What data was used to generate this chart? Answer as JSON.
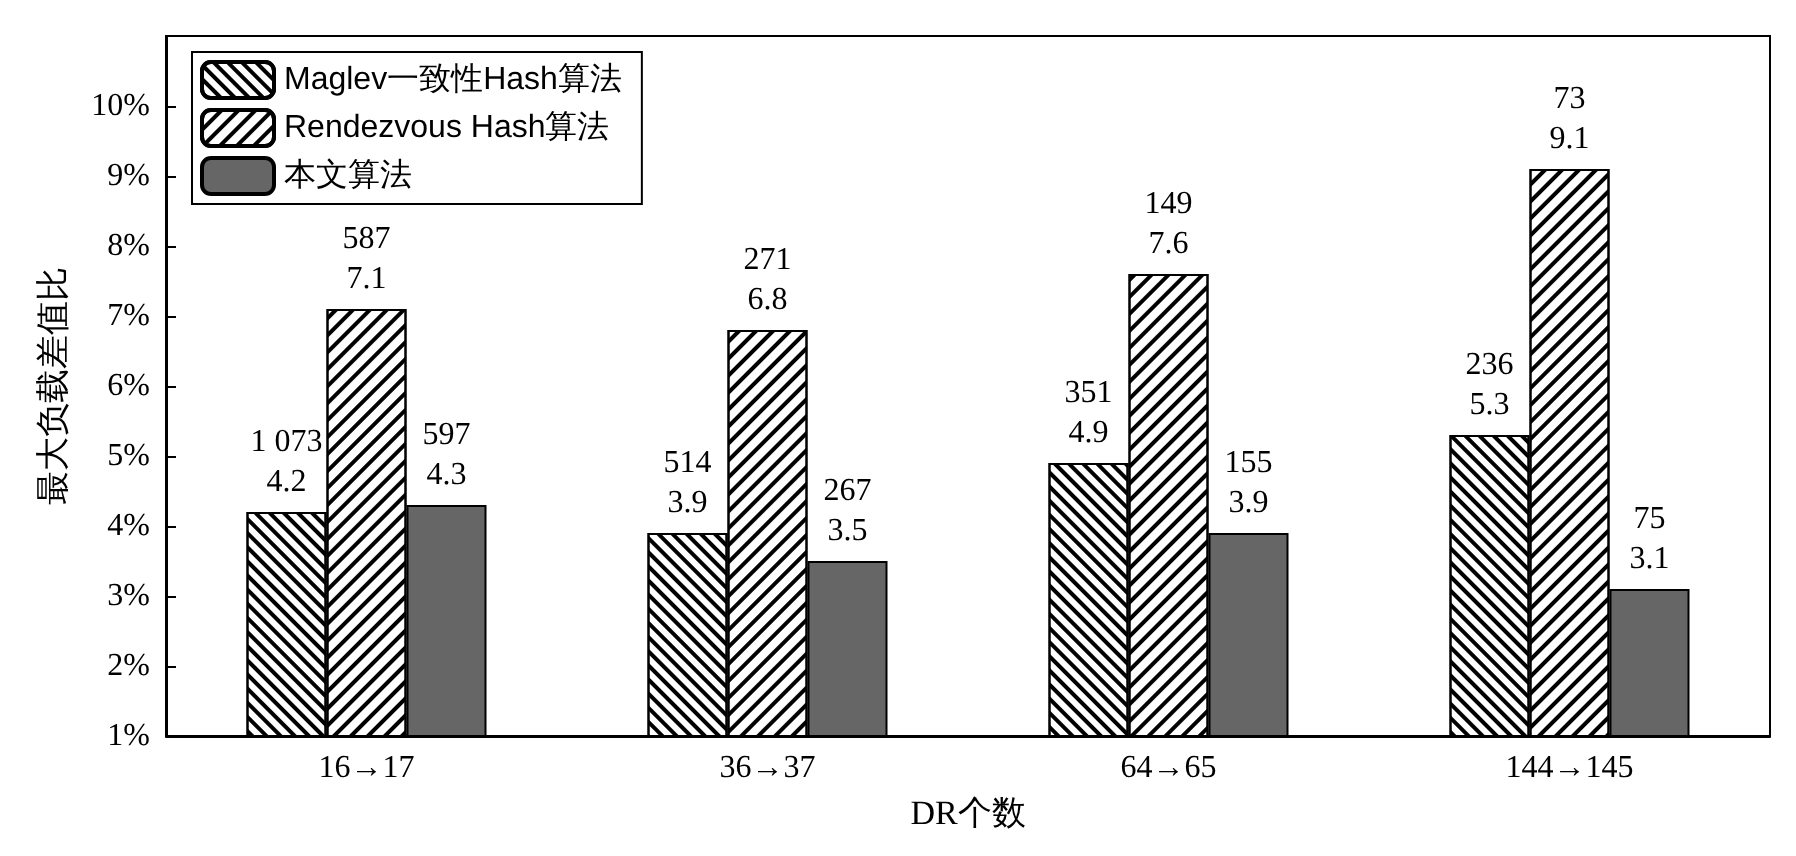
{
  "chart_data": {
    "type": "bar",
    "xlabel": "DR个数",
    "ylabel": "最大负载差值比",
    "categories": [
      "16→17",
      "36→37",
      "64→65",
      "144→145"
    ],
    "series": [
      {
        "name": "Maglev一致性Hash算法",
        "color": "#ffffff",
        "values": [
          4.2,
          3.9,
          4.9,
          5.3
        ],
        "value_labels": [
          "1 073\n4.2",
          "514\n3.9",
          "351\n4.9",
          "236\n5.3"
        ]
      },
      {
        "name": "Rendezvous Hash算法",
        "color": "#ffffff",
        "values": [
          7.1,
          6.8,
          7.6,
          9.1
        ],
        "value_labels": [
          "587\n7.1",
          "271\n6.8",
          "149\n7.6",
          "73\n9.1"
        ]
      },
      {
        "name": "本文算法",
        "color": "#666666",
        "values": [
          4.3,
          3.5,
          3.9,
          3.1
        ],
        "value_labels": [
          "597\n4.3",
          "267\n3.5",
          "155\n3.9",
          "75\n3.1"
        ]
      }
    ],
    "ylim": [
      1,
      11
    ],
    "yticks": [
      {
        "value": 1,
        "label": "1%"
      },
      {
        "value": 2,
        "label": "2%"
      },
      {
        "value": 3,
        "label": "3%"
      },
      {
        "value": 4,
        "label": "4%"
      },
      {
        "value": 5,
        "label": "5%"
      },
      {
        "value": 6,
        "label": "6%"
      },
      {
        "value": 7,
        "label": "7%"
      },
      {
        "value": 8,
        "label": "8%"
      },
      {
        "value": 9,
        "label": "9%"
      },
      {
        "value": 10,
        "label": "10%"
      }
    ],
    "grid": false,
    "legend": "top left"
  }
}
